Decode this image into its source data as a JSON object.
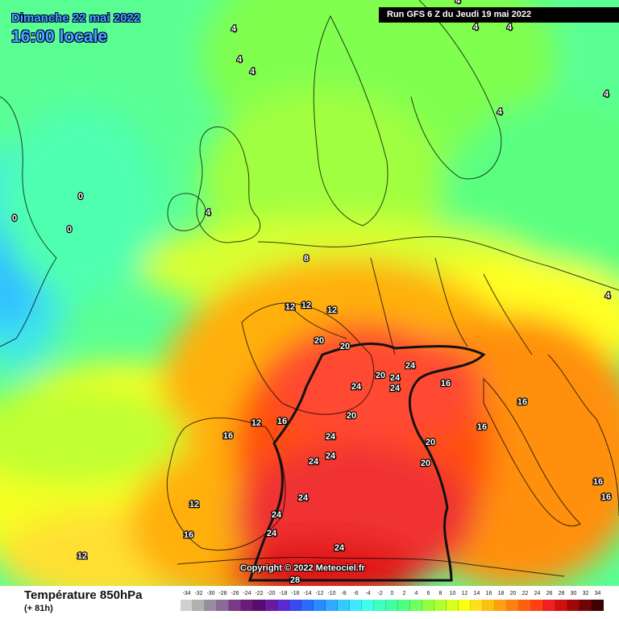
{
  "header": {
    "date": "Dimanche 22 mai 2022",
    "time": "16:00 locale",
    "run": "Run GFS 6 Z du Jeudi 19 mai 2022"
  },
  "map": {
    "copyright": "Copyright © 2022 Meteociel.fr",
    "labels": [
      "4",
      "4",
      "4",
      "4",
      "4",
      "4",
      "4",
      "4",
      "4",
      "0",
      "0",
      "0",
      "4",
      "8",
      "12",
      "12",
      "12",
      "20",
      "20",
      "20",
      "24",
      "24",
      "24",
      "24",
      "20",
      "16",
      "12",
      "16",
      "16",
      "16",
      "16",
      "24",
      "24",
      "24",
      "24",
      "20",
      "20",
      "24",
      "24",
      "16",
      "16",
      "12",
      "16",
      "12",
      "24",
      "28"
    ]
  },
  "footer": {
    "title": "Température 850hPa",
    "subtitle": "(+ 81h)"
  },
  "legend": {
    "ticks": [
      "-34",
      "-32",
      "-30",
      "-28",
      "-26",
      "-24",
      "-22",
      "-20",
      "-18",
      "-16",
      "-14",
      "-12",
      "-10",
      "-8",
      "-6",
      "-4",
      "-2",
      "0",
      "2",
      "4",
      "6",
      "8",
      "10",
      "12",
      "14",
      "16",
      "18",
      "20",
      "22",
      "24",
      "26",
      "28",
      "30",
      "32",
      "34"
    ],
    "colors": [
      "#d0d0d0",
      "#b0b0b0",
      "#9a8aa0",
      "#8a6a98",
      "#7a3a88",
      "#6a1a78",
      "#5a0a70",
      "#6a1aa0",
      "#5a2ad0",
      "#3a4af0",
      "#2a6aff",
      "#2a8aff",
      "#30aaff",
      "#30ccff",
      "#40e8ff",
      "#40ffe8",
      "#40ffc0",
      "#40ffa0",
      "#50ff80",
      "#70ff60",
      "#90ff40",
      "#b0ff30",
      "#d8ff20",
      "#f8ff10",
      "#ffe020",
      "#ffc010",
      "#ffa010",
      "#ff8010",
      "#ff6010",
      "#ff4010",
      "#f02020",
      "#d01010",
      "#a00808",
      "#700404",
      "#400000"
    ]
  }
}
